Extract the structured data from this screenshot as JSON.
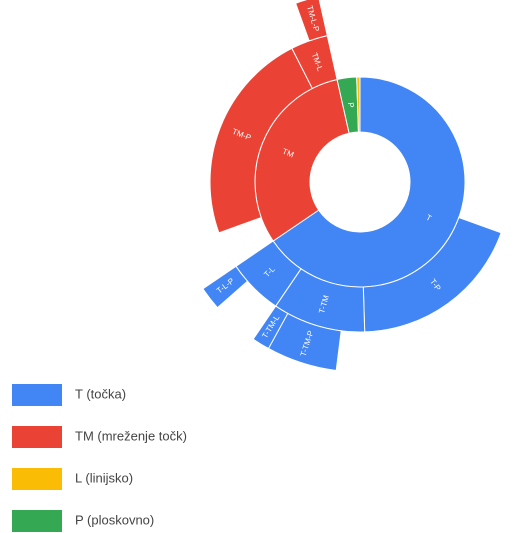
{
  "chart_data": {
    "type": "sunburst",
    "nodes": [
      {
        "name": "T",
        "legend": "T (točka)",
        "color": "#4285f4",
        "value": 131,
        "children": [
          {
            "name": "T-P",
            "value": 38
          },
          {
            "name": "T-TM",
            "value": 20,
            "children": [
              {
                "name": "T-TM-P",
                "value": 12
              },
              {
                "name": "T-TM-L",
                "value": 3
              }
            ]
          },
          {
            "name": "T-L",
            "value": 12,
            "children": [
              {
                "name": "T-L-P",
                "value": 4
              }
            ]
          }
        ]
      },
      {
        "name": "TM",
        "legend": "TM (mreženje točk)",
        "color": "#ea4335",
        "value": 62,
        "children": [
          {
            "name": "TM-P",
            "value": 46
          },
          {
            "name": "TM-L",
            "value": 8,
            "children": [
              {
                "name": "TM-L-P",
                "value": 4
              }
            ]
          }
        ]
      },
      {
        "name": "P",
        "legend": "P (ploskovno)",
        "color": "#34a853",
        "value": 6
      },
      {
        "name": "L",
        "legend": "L (linijsko)",
        "color": "#fbbc05",
        "value": 1
      }
    ],
    "legend_order": [
      0,
      1,
      3,
      2
    ]
  }
}
